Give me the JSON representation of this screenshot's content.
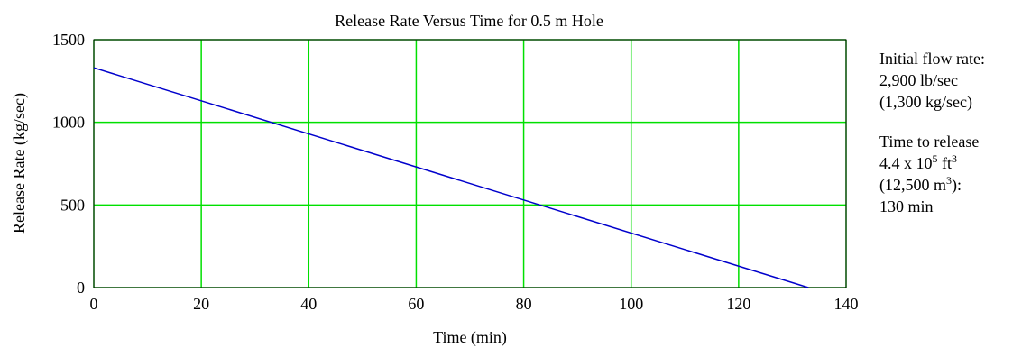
{
  "chart_data": {
    "type": "line",
    "title": "Release Rate Versus Time for 0.5 m Hole",
    "xlabel": "Time (min)",
    "ylabel": "Release Rate (kg/sec)",
    "xlim": [
      0,
      140
    ],
    "ylim": [
      0,
      1500
    ],
    "x_ticks": [
      "0",
      "20",
      "40",
      "60",
      "80",
      "100",
      "120",
      "140"
    ],
    "y_ticks": [
      "0",
      "500",
      "1000",
      "1500"
    ],
    "grid": true,
    "series": [
      {
        "x": [
          0,
          133
        ],
        "y": [
          1330,
          0
        ]
      }
    ],
    "colors": {
      "grid": "#00e000",
      "line": "#0000cc",
      "frame": "#000000"
    }
  },
  "notes": {
    "flow_heading": "Initial flow rate:",
    "flow_english": "2,900 lb/sec",
    "flow_metric": "(1,300 kg/sec)",
    "release_heading": "Time to release",
    "volume_english_base": "4.4 x 10",
    "volume_english_exp": "5",
    "volume_english_unit": " ft",
    "volume_english_unit_exp": "3",
    "volume_metric_open": "(12,500 m",
    "volume_metric_exp": "3",
    "volume_metric_close": "):",
    "release_time": "130 min"
  }
}
